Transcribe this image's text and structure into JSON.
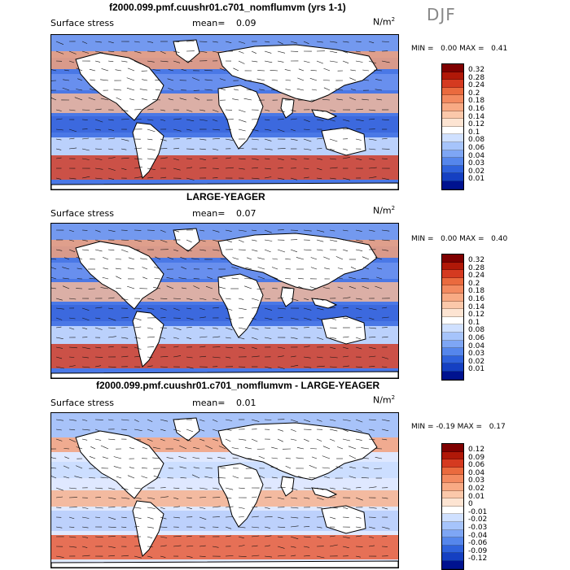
{
  "season": "DJF",
  "panels": [
    {
      "title": "f2000.099.pmf.cuushr01.c701_nomflumvm (yrs 1-1)",
      "field_label": "Surface stress",
      "mean_label": "mean=",
      "mean_value": "0.09",
      "units_base": "N/m",
      "units_exp": "2",
      "min_label": "MIN =",
      "min_value": "0.00",
      "max_label": "MAX =",
      "max_value": "0.41",
      "scale": "sequential",
      "colorbar_ticks": [
        "0.32",
        "0.28",
        "0.24",
        "0.2",
        "0.18",
        "0.16",
        "0.14",
        "0.12",
        "0.1",
        "0.08",
        "0.06",
        "0.04",
        "0.03",
        "0.02",
        "0.01"
      ],
      "colorbar_colors": [
        "#7f0000",
        "#b01808",
        "#d53a20",
        "#ea6a3e",
        "#f38a60",
        "#f8aa84",
        "#fbc8aa",
        "#fde4d2",
        "#ffffff",
        "#cfe0ff",
        "#a6c4fb",
        "#7ea6f5",
        "#5586ec",
        "#2f62dc",
        "#1540c2",
        "#00128f"
      ]
    },
    {
      "title": "LARGE-YEAGER",
      "field_label": "Surface stress",
      "mean_label": "mean=",
      "mean_value": "0.07",
      "units_base": "N/m",
      "units_exp": "2",
      "min_label": "MIN =",
      "min_value": "0.00",
      "max_label": "MAX =",
      "max_value": "0.40",
      "scale": "sequential",
      "colorbar_ticks": [
        "0.32",
        "0.28",
        "0.24",
        "0.2",
        "0.18",
        "0.16",
        "0.14",
        "0.12",
        "0.1",
        "0.08",
        "0.06",
        "0.04",
        "0.03",
        "0.02",
        "0.01"
      ],
      "colorbar_colors": [
        "#7f0000",
        "#b01808",
        "#d53a20",
        "#ea6a3e",
        "#f38a60",
        "#f8aa84",
        "#fbc8aa",
        "#fde4d2",
        "#ffffff",
        "#cfe0ff",
        "#a6c4fb",
        "#7ea6f5",
        "#5586ec",
        "#2f62dc",
        "#1540c2",
        "#00128f"
      ]
    },
    {
      "title": "f2000.099.pmf.cuushr01.c701_nomflumvm - LARGE-YEAGER",
      "field_label": "Surface stress",
      "mean_label": "mean=",
      "mean_value": "0.01",
      "units_base": "N/m",
      "units_exp": "2",
      "min_label": "MIN =",
      "min_value": "-0.19",
      "max_label": "MAX =",
      "max_value": "0.17",
      "scale": "diverging",
      "colorbar_ticks": [
        "0.12",
        "0.09",
        "0.06",
        "0.04",
        "0.03",
        "0.02",
        "0.01",
        "0",
        "-0.01",
        "-0.02",
        "-0.03",
        "-0.04",
        "-0.06",
        "-0.09",
        "-0.12"
      ],
      "colorbar_colors": [
        "#7f0000",
        "#b01808",
        "#d53a20",
        "#ea6a3e",
        "#f38a60",
        "#f8aa84",
        "#fbc8aa",
        "#fde4d2",
        "#ffffff",
        "#cfe0ff",
        "#a6c4fb",
        "#7ea6f5",
        "#5586ec",
        "#2f62dc",
        "#1540c2",
        "#00128f"
      ]
    }
  ],
  "chart_data": [
    {
      "type": "heatmap",
      "title": "f2000.099.pmf.cuushr01.c701_nomflumvm (yrs 1-1)",
      "field": "Surface stress",
      "units": "N/m2",
      "mean": 0.09,
      "min": 0.0,
      "max": 0.41,
      "colorbar_levels": [
        0.32,
        0.28,
        0.24,
        0.2,
        0.18,
        0.16,
        0.14,
        0.12,
        0.1,
        0.08,
        0.06,
        0.04,
        0.03,
        0.02,
        0.01
      ]
    },
    {
      "type": "heatmap",
      "title": "LARGE-YEAGER",
      "field": "Surface stress",
      "units": "N/m2",
      "mean": 0.07,
      "min": 0.0,
      "max": 0.4,
      "colorbar_levels": [
        0.32,
        0.28,
        0.24,
        0.2,
        0.18,
        0.16,
        0.14,
        0.12,
        0.1,
        0.08,
        0.06,
        0.04,
        0.03,
        0.02,
        0.01
      ]
    },
    {
      "type": "heatmap",
      "title": "f2000.099.pmf.cuushr01.c701_nomflumvm - LARGE-YEAGER",
      "field": "Surface stress",
      "units": "N/m2",
      "mean": 0.01,
      "min": -0.19,
      "max": 0.17,
      "colorbar_levels": [
        0.12,
        0.09,
        0.06,
        0.04,
        0.03,
        0.02,
        0.01,
        0,
        -0.01,
        -0.02,
        -0.03,
        -0.04,
        -0.06,
        -0.09,
        -0.12
      ]
    }
  ]
}
